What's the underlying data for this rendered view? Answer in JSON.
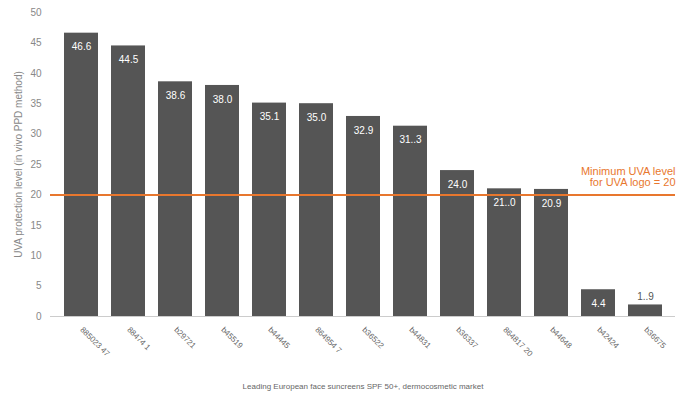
{
  "chart_data": {
    "type": "bar",
    "categories": [
      "885023 47",
      "88474 1",
      "b29721",
      "b45519",
      "b44445",
      "864954 7",
      "b36522",
      "b44831",
      "b36337",
      "864817 20",
      "b44648",
      "b42424",
      "b36675"
    ],
    "values": [
      46.6,
      44.5,
      38.6,
      38.0,
      35.1,
      35.0,
      32.9,
      31.3,
      24.0,
      21.0,
      20.9,
      4.4,
      1.9
    ],
    "value_labels": [
      "46.6",
      "44.5",
      "38.6",
      "38.0",
      "35.1",
      "35.0",
      "32.9",
      "31..3",
      "24.0",
      "21..0",
      "20.9",
      "4.4",
      "1..9"
    ],
    "color": "#555555",
    "ylabel": "UVA protection level (in vivo PPD method)",
    "xlabel": "Leading European face suncreens SPF 50+, dermocosmetic market",
    "ylim": [
      0,
      50
    ],
    "yticks": [
      0,
      5,
      10,
      15,
      20,
      25,
      30,
      35,
      40,
      45,
      50
    ],
    "grid": false,
    "data_labels": true,
    "reference_line": {
      "value": 20,
      "label": "Minimum UVA level\nfor UVA logo = 20",
      "color": "#e8772e"
    }
  }
}
